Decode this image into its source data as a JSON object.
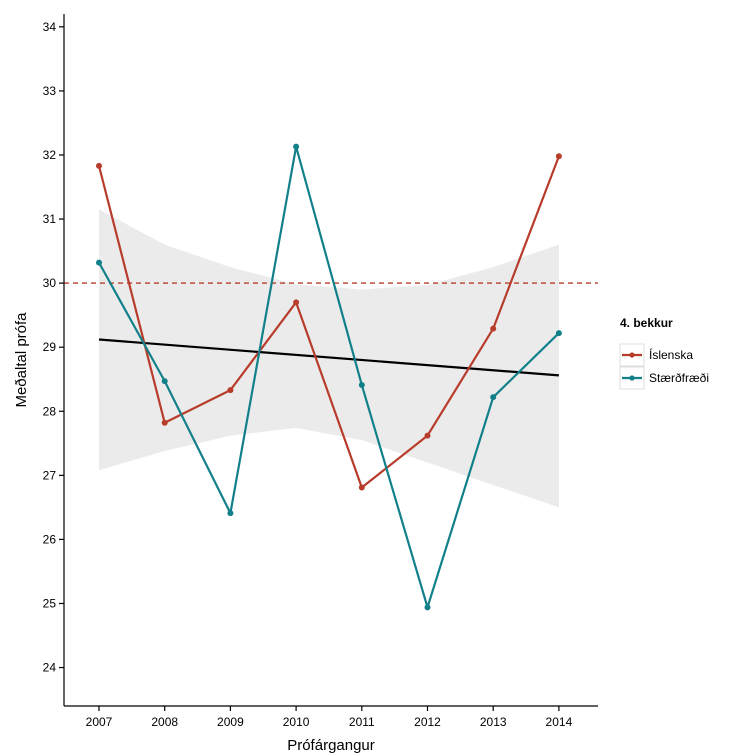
{
  "chart_data": {
    "type": "line",
    "xlabel": "Prófárgangur",
    "ylabel": "Meðaltal prófa",
    "x": [
      "2007",
      "2008",
      "2009",
      "2010",
      "2011",
      "2012",
      "2013",
      "2014"
    ],
    "ylim": [
      23.4,
      34.2
    ],
    "yticks": [
      24,
      25,
      26,
      27,
      28,
      29,
      30,
      31,
      32,
      33,
      34
    ],
    "grid": false,
    "legend": {
      "title": "4. bekkur",
      "position": "right"
    },
    "series": [
      {
        "name": "Íslenska",
        "color": "#b83c2b",
        "values": [
          31.83,
          27.82,
          28.33,
          29.7,
          26.81,
          27.62,
          29.29,
          31.98
        ]
      },
      {
        "name": "Stærðfræði",
        "color": "#12808a",
        "values": [
          30.32,
          28.47,
          26.41,
          32.13,
          28.41,
          24.94,
          28.22,
          29.22
        ]
      }
    ],
    "trend_line": {
      "start": 29.12,
      "end": 28.56,
      "color": "#000000"
    },
    "confidence_band": {
      "upper": [
        31.15,
        30.6,
        30.25,
        29.98,
        29.9,
        29.97,
        30.25,
        30.6
      ],
      "lower": [
        27.08,
        27.38,
        27.62,
        27.74,
        27.55,
        27.2,
        26.85,
        26.5
      ],
      "color": "#ebebeb"
    },
    "reference_line": {
      "value": 30,
      "color": "#b83c2b",
      "style": "dashed"
    }
  }
}
